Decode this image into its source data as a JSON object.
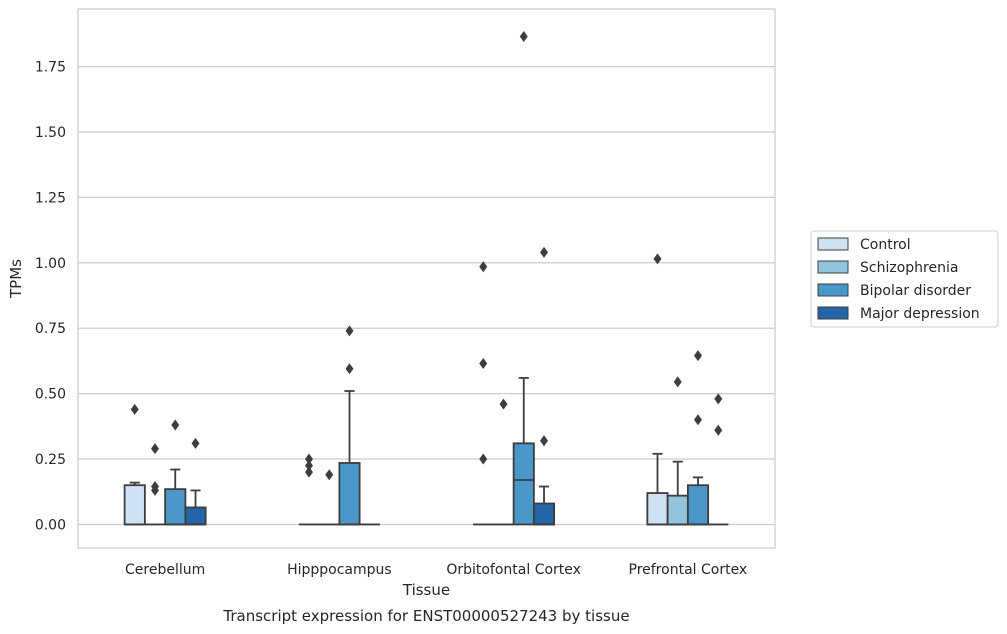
{
  "chart_data": {
    "type": "box",
    "xlabel": "Tissue",
    "ylabel": "TPMs",
    "caption": "Transcript expression for ENST00000527243 by tissue",
    "categories": [
      "Cerebellum",
      "Hipppocampus",
      "Orbitofontal Cortex",
      "Prefrontal Cortex"
    ],
    "ylim": [
      -0.09,
      1.97
    ],
    "yticks": [
      "0.00",
      "0.25",
      "0.50",
      "0.75",
      "1.00",
      "1.25",
      "1.50",
      "1.75"
    ],
    "grid": true,
    "legend_position": "right",
    "series": [
      {
        "name": "Control",
        "color": "#cfe1f2",
        "boxes": [
          {
            "q1": 0.0,
            "median": 0.0,
            "q3": 0.15,
            "whisker_low": 0.0,
            "whisker_high": 0.16,
            "outliers": [
              0.44
            ]
          },
          {
            "q1": 0.0,
            "median": 0.0,
            "q3": 0.0,
            "whisker_low": 0.0,
            "whisker_high": 0.0,
            "outliers": [
              0.2,
              0.225,
              0.25
            ]
          },
          {
            "q1": 0.0,
            "median": 0.0,
            "q3": 0.0,
            "whisker_low": 0.0,
            "whisker_high": 0.0,
            "outliers": [
              0.25,
              0.615,
              0.985
            ]
          },
          {
            "q1": 0.0,
            "median": 0.0,
            "q3": 0.12,
            "whisker_low": 0.0,
            "whisker_high": 0.27,
            "outliers": [
              1.015
            ]
          }
        ]
      },
      {
        "name": "Schizophrenia",
        "color": "#93c4de",
        "boxes": [
          {
            "q1": 0.0,
            "median": 0.0,
            "q3": 0.0,
            "whisker_low": 0.0,
            "whisker_high": 0.0,
            "outliers": [
              0.13,
              0.145,
              0.29
            ]
          },
          {
            "q1": 0.0,
            "median": 0.0,
            "q3": 0.0,
            "whisker_low": 0.0,
            "whisker_high": 0.0,
            "outliers": [
              0.19
            ]
          },
          {
            "q1": 0.0,
            "median": 0.0,
            "q3": 0.0,
            "whisker_low": 0.0,
            "whisker_high": 0.0,
            "outliers": [
              0.46
            ]
          },
          {
            "q1": 0.0,
            "median": 0.0,
            "q3": 0.11,
            "whisker_low": 0.0,
            "whisker_high": 0.24,
            "outliers": [
              0.545
            ]
          }
        ]
      },
      {
        "name": "Bipolar disorder",
        "color": "#4a98c9",
        "boxes": [
          {
            "q1": 0.0,
            "median": 0.0,
            "q3": 0.135,
            "whisker_low": 0.0,
            "whisker_high": 0.21,
            "outliers": [
              0.38
            ]
          },
          {
            "q1": 0.0,
            "median": 0.0,
            "q3": 0.235,
            "whisker_low": 0.0,
            "whisker_high": 0.51,
            "outliers": [
              0.595,
              0.74
            ]
          },
          {
            "q1": 0.0,
            "median": 0.17,
            "q3": 0.31,
            "whisker_low": 0.0,
            "whisker_high": 0.56,
            "outliers": [
              1.865
            ]
          },
          {
            "q1": 0.0,
            "median": 0.0,
            "q3": 0.15,
            "whisker_low": 0.0,
            "whisker_high": 0.18,
            "outliers": [
              0.4,
              0.645
            ]
          }
        ]
      },
      {
        "name": "Major depression",
        "color": "#2464a8",
        "boxes": [
          {
            "q1": 0.0,
            "median": 0.0,
            "q3": 0.065,
            "whisker_low": 0.0,
            "whisker_high": 0.13,
            "outliers": [
              0.31
            ]
          },
          {
            "q1": 0.0,
            "median": 0.0,
            "q3": 0.0,
            "whisker_low": 0.0,
            "whisker_high": 0.0,
            "outliers": []
          },
          {
            "q1": 0.0,
            "median": 0.0,
            "q3": 0.08,
            "whisker_low": 0.0,
            "whisker_high": 0.145,
            "outliers": [
              0.32,
              1.04
            ]
          },
          {
            "q1": 0.0,
            "median": 0.0,
            "q3": 0.0,
            "whisker_low": 0.0,
            "whisker_high": 0.0,
            "outliers": [
              0.36,
              0.48
            ]
          }
        ]
      }
    ]
  }
}
